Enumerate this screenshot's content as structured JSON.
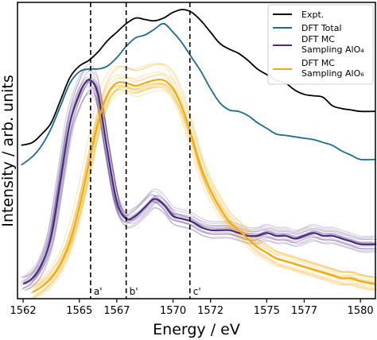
{
  "chart_data": {
    "type": "line",
    "xlabel": "Energy / eV",
    "ylabel": "Intensity / arb. units",
    "xlim": [
      1561.7,
      1580.8
    ],
    "ylim": [
      0,
      1.0
    ],
    "yticks_shown": false,
    "x_ticks": [
      1562,
      1565,
      1567,
      1570,
      1572,
      1575,
      1577,
      1580
    ],
    "x_tick_labels": [
      "1562",
      "1565",
      "1567",
      "1570",
      "1572",
      "1575",
      "1577",
      "1580"
    ],
    "legend": {
      "position": "top-right",
      "entries": [
        {
          "label": "Expt.",
          "color": "#000000"
        },
        {
          "label": "DFT Total",
          "color": "#1f6b8c"
        },
        {
          "label_line1": "DFT MC",
          "label_line2": "Sampling AlO₄",
          "color": "#4b2a7b"
        },
        {
          "label_line1": "DFT MC",
          "label_line2": "Sampling AlO₆",
          "color": "#f2ab0d"
        }
      ]
    },
    "annotations": [
      {
        "label": "a'",
        "x": 1565.6
      },
      {
        "label": "b'",
        "x": 1567.5
      },
      {
        "label": "c'",
        "x": 1570.9
      }
    ],
    "series": [
      {
        "name": "Expt.",
        "color": "#000000",
        "x": [
          1561.9,
          1562.5,
          1563.0,
          1563.5,
          1564.0,
          1564.5,
          1565.0,
          1565.5,
          1566.0,
          1566.5,
          1567.0,
          1567.5,
          1568.0,
          1568.5,
          1569.0,
          1569.5,
          1570.0,
          1570.5,
          1571.0,
          1571.5,
          1572.0,
          1572.5,
          1573.0,
          1573.5,
          1574.0,
          1574.5,
          1575.0,
          1575.5,
          1576.0,
          1576.5,
          1577.0,
          1577.5,
          1578.0,
          1578.5,
          1579.0,
          1579.5,
          1580.0,
          1580.8
        ],
        "y": [
          0.52,
          0.53,
          0.56,
          0.6,
          0.68,
          0.76,
          0.8,
          0.82,
          0.85,
          0.89,
          0.92,
          0.95,
          0.97,
          0.965,
          0.96,
          0.97,
          0.99,
          1.0,
          0.99,
          0.96,
          0.92,
          0.88,
          0.86,
          0.845,
          0.82,
          0.79,
          0.77,
          0.75,
          0.74,
          0.715,
          0.7,
          0.695,
          0.69,
          0.66,
          0.65,
          0.645,
          0.64,
          0.64
        ]
      },
      {
        "name": "DFT Total",
        "color": "#1f6b8c",
        "x": [
          1561.9,
          1562.5,
          1563.0,
          1563.5,
          1564.0,
          1564.5,
          1565.0,
          1565.5,
          1566.0,
          1566.5,
          1567.0,
          1567.5,
          1568.0,
          1568.5,
          1569.0,
          1569.5,
          1570.0,
          1570.5,
          1571.0,
          1571.5,
          1572.0,
          1572.5,
          1573.0,
          1573.5,
          1574.0,
          1574.5,
          1575.0,
          1575.5,
          1576.0,
          1576.5,
          1577.0,
          1577.5,
          1578.0,
          1578.5,
          1579.0,
          1579.5,
          1580.0,
          1580.8
        ],
        "y": [
          0.45,
          0.48,
          0.52,
          0.58,
          0.66,
          0.74,
          0.78,
          0.79,
          0.79,
          0.8,
          0.83,
          0.87,
          0.9,
          0.91,
          0.93,
          0.95,
          0.92,
          0.88,
          0.83,
          0.78,
          0.72,
          0.67,
          0.645,
          0.64,
          0.625,
          0.6,
          0.58,
          0.56,
          0.555,
          0.55,
          0.545,
          0.54,
          0.53,
          0.52,
          0.5,
          0.485,
          0.47,
          0.47
        ]
      },
      {
        "name": "DFT MC Sampling AlO₄",
        "color": "#4b2a7b",
        "x": [
          1562.0,
          1562.5,
          1563.0,
          1563.5,
          1564.0,
          1564.5,
          1565.0,
          1565.3,
          1565.6,
          1566.0,
          1566.5,
          1567.0,
          1567.5,
          1568.0,
          1568.5,
          1569.0,
          1569.5,
          1570.0,
          1570.5,
          1571.0,
          1571.5,
          1572.0,
          1572.5,
          1573.0,
          1573.5,
          1574.0,
          1574.5,
          1575.0,
          1575.5,
          1576.0,
          1576.5,
          1577.0,
          1577.5,
          1578.0,
          1578.5,
          1579.0,
          1579.5,
          1580.0,
          1580.8
        ],
        "y": [
          0.03,
          0.05,
          0.1,
          0.2,
          0.4,
          0.6,
          0.7,
          0.74,
          0.75,
          0.7,
          0.5,
          0.32,
          0.26,
          0.27,
          0.3,
          0.33,
          0.31,
          0.27,
          0.26,
          0.25,
          0.23,
          0.22,
          0.22,
          0.22,
          0.21,
          0.2,
          0.2,
          0.21,
          0.2,
          0.2,
          0.19,
          0.2,
          0.21,
          0.2,
          0.2,
          0.19,
          0.18,
          0.17,
          0.17
        ]
      },
      {
        "name": "DFT MC Sampling AlO₆",
        "color": "#f2ab0d",
        "x": [
          1562.5,
          1563.0,
          1563.5,
          1564.0,
          1564.5,
          1565.0,
          1565.5,
          1566.0,
          1566.5,
          1567.0,
          1567.5,
          1568.0,
          1568.5,
          1569.0,
          1569.5,
          1570.0,
          1570.5,
          1571.0,
          1571.5,
          1572.0,
          1572.5,
          1573.0,
          1573.5,
          1574.0,
          1574.5,
          1575.0,
          1575.5,
          1576.0,
          1576.5,
          1577.0,
          1577.5,
          1578.0,
          1578.5,
          1579.0,
          1579.5,
          1580.0,
          1580.8
        ],
        "y": [
          0.0,
          0.02,
          0.05,
          0.1,
          0.18,
          0.3,
          0.45,
          0.6,
          0.7,
          0.74,
          0.74,
          0.73,
          0.74,
          0.75,
          0.75,
          0.72,
          0.65,
          0.55,
          0.44,
          0.36,
          0.3,
          0.25,
          0.22,
          0.19,
          0.16,
          0.14,
          0.12,
          0.11,
          0.1,
          0.09,
          0.08,
          0.07,
          0.06,
          0.05,
          0.05,
          0.04,
          0.03
        ]
      }
    ]
  }
}
